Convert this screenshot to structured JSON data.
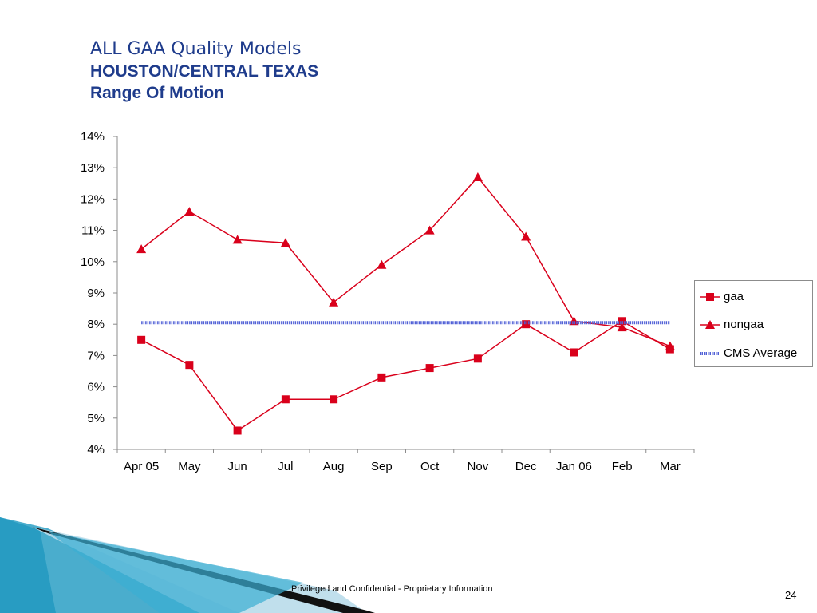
{
  "title": {
    "line1": "ALL GAA Quality Models",
    "line2": "HOUSTON/CENTRAL TEXAS",
    "line3": "Range Of Motion"
  },
  "chart_data": {
    "type": "line",
    "categories": [
      "Apr 05",
      "May",
      "Jun",
      "Jul",
      "Aug",
      "Sep",
      "Oct",
      "Nov",
      "Dec",
      "Jan 06",
      "Feb",
      "Mar"
    ],
    "ylim": [
      4,
      14
    ],
    "yticks": [
      "4%",
      "5%",
      "6%",
      "7%",
      "8%",
      "9%",
      "10%",
      "11%",
      "12%",
      "13%",
      "14%"
    ],
    "grid": false,
    "legend_position": "right",
    "series": [
      {
        "name": "gaa",
        "marker": "square",
        "color": "#d9001b",
        "values": [
          7.5,
          6.7,
          4.6,
          5.6,
          5.6,
          6.3,
          6.6,
          6.9,
          8.0,
          7.1,
          8.1,
          7.2
        ]
      },
      {
        "name": "nongaa",
        "marker": "triangle",
        "color": "#d9001b",
        "values": [
          10.4,
          11.6,
          10.7,
          10.6,
          8.7,
          9.9,
          11.0,
          12.7,
          10.8,
          8.1,
          7.9,
          7.3
        ]
      },
      {
        "name": "CMS Average",
        "marker": "none",
        "color": "#4f5fd6",
        "values": [
          8.05,
          8.05,
          8.05,
          8.05,
          8.05,
          8.05,
          8.05,
          8.05,
          8.05,
          8.05,
          8.05,
          8.05
        ]
      }
    ]
  },
  "footer": {
    "text": "Privileged and Confidential - Proprietary Information",
    "page_number": "24"
  },
  "colors": {
    "title": "#1f3c8c",
    "series_red": "#d9001b",
    "cms_blue": "#4f5fd6",
    "decor_teal": "#1f8fb5"
  }
}
